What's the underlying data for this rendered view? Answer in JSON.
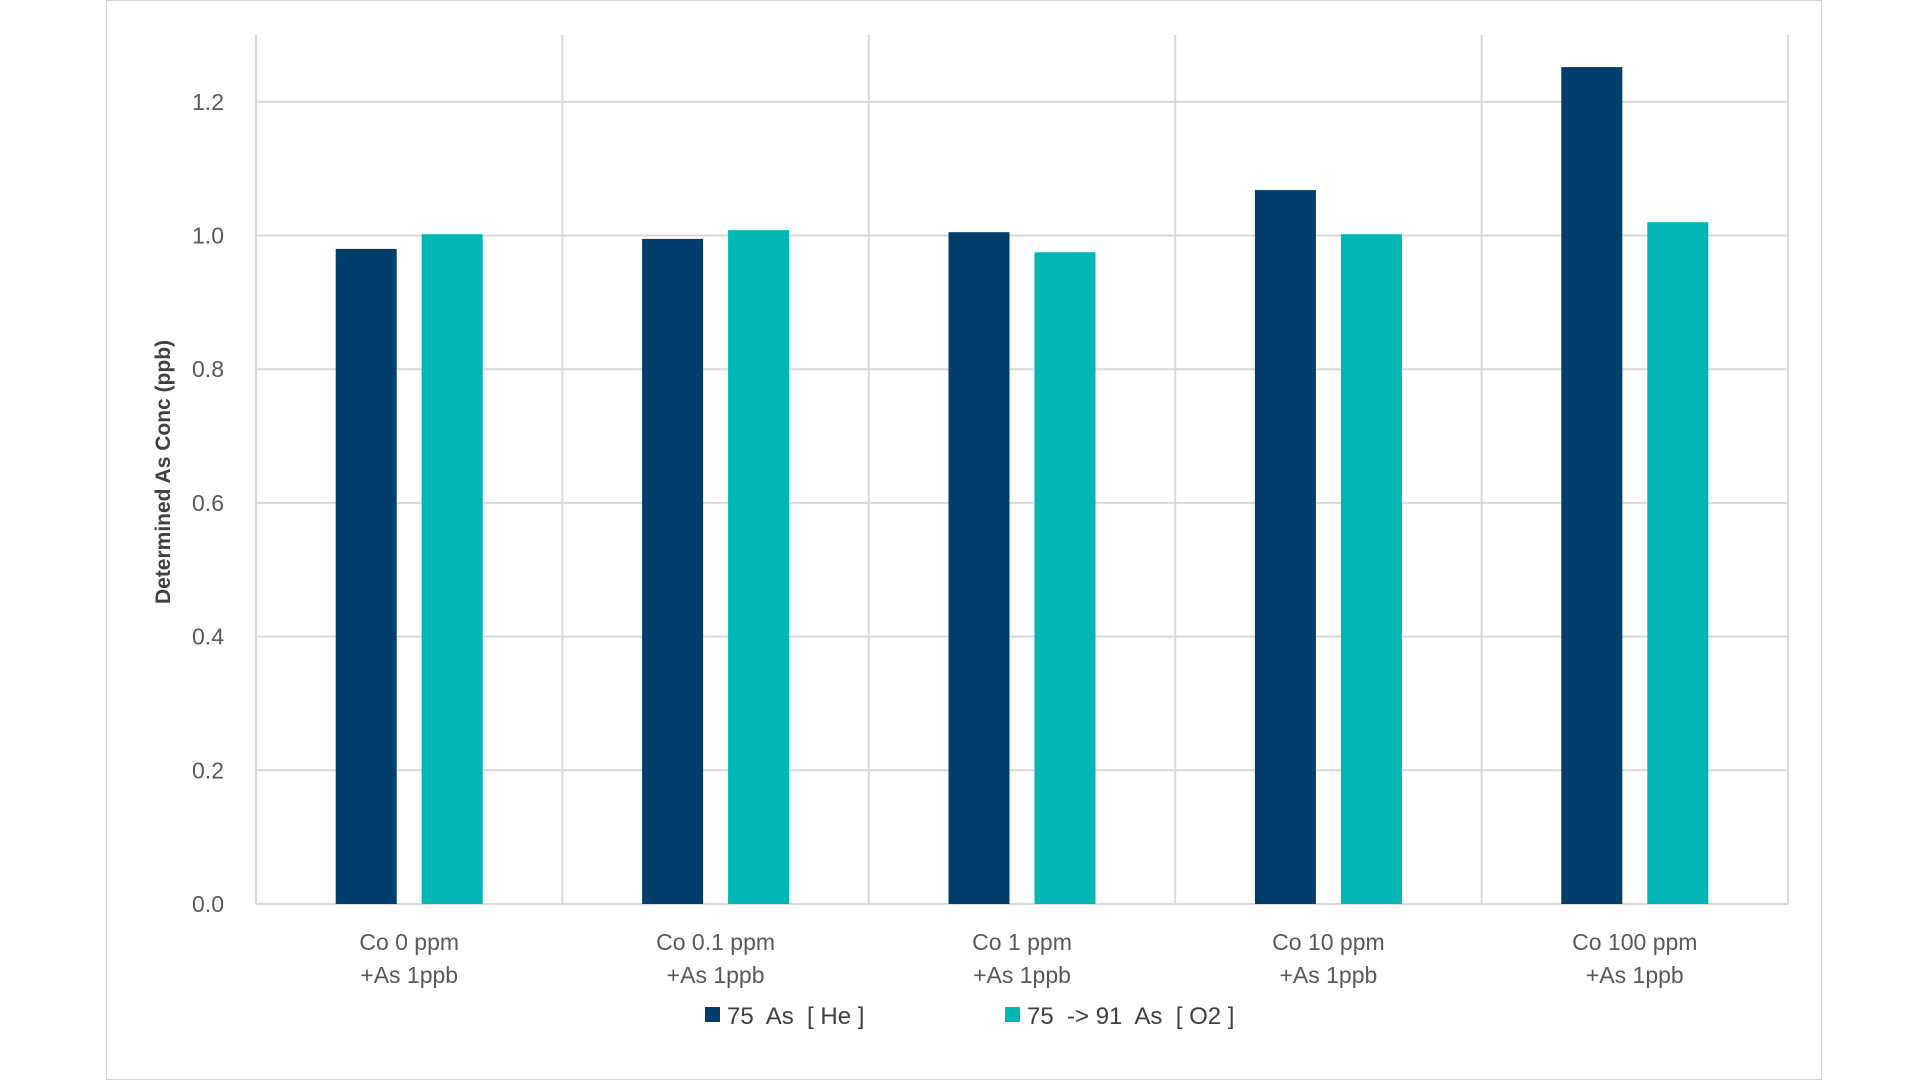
{
  "chart_data": {
    "type": "bar",
    "title": "",
    "xlabel": "",
    "ylabel": "Determined As Conc (ppb)",
    "ylim": [
      0,
      1.3
    ],
    "yticks": [
      "0.0",
      "0.2",
      "0.4",
      "0.6",
      "0.8",
      "1.0",
      "1.2"
    ],
    "grid": true,
    "legend_position": "bottom",
    "categories": [
      [
        "Co 0 ppm",
        "+As 1ppb"
      ],
      [
        "Co 0.1 ppm",
        "+As 1ppb"
      ],
      [
        "Co 1 ppm",
        "+As 1ppb"
      ],
      [
        "Co 10 ppm",
        "+As 1ppb"
      ],
      [
        "Co 100 ppm",
        "+As 1ppb"
      ]
    ],
    "series": [
      {
        "name": "75  As  [ He ]",
        "color": "#003f6b",
        "values": [
          0.98,
          0.995,
          1.005,
          1.068,
          1.252
        ]
      },
      {
        "name": "75  -> 91  As  [ O2 ]",
        "color": "#00b7b3",
        "values": [
          1.002,
          1.008,
          0.975,
          1.002,
          1.02
        ]
      }
    ]
  }
}
